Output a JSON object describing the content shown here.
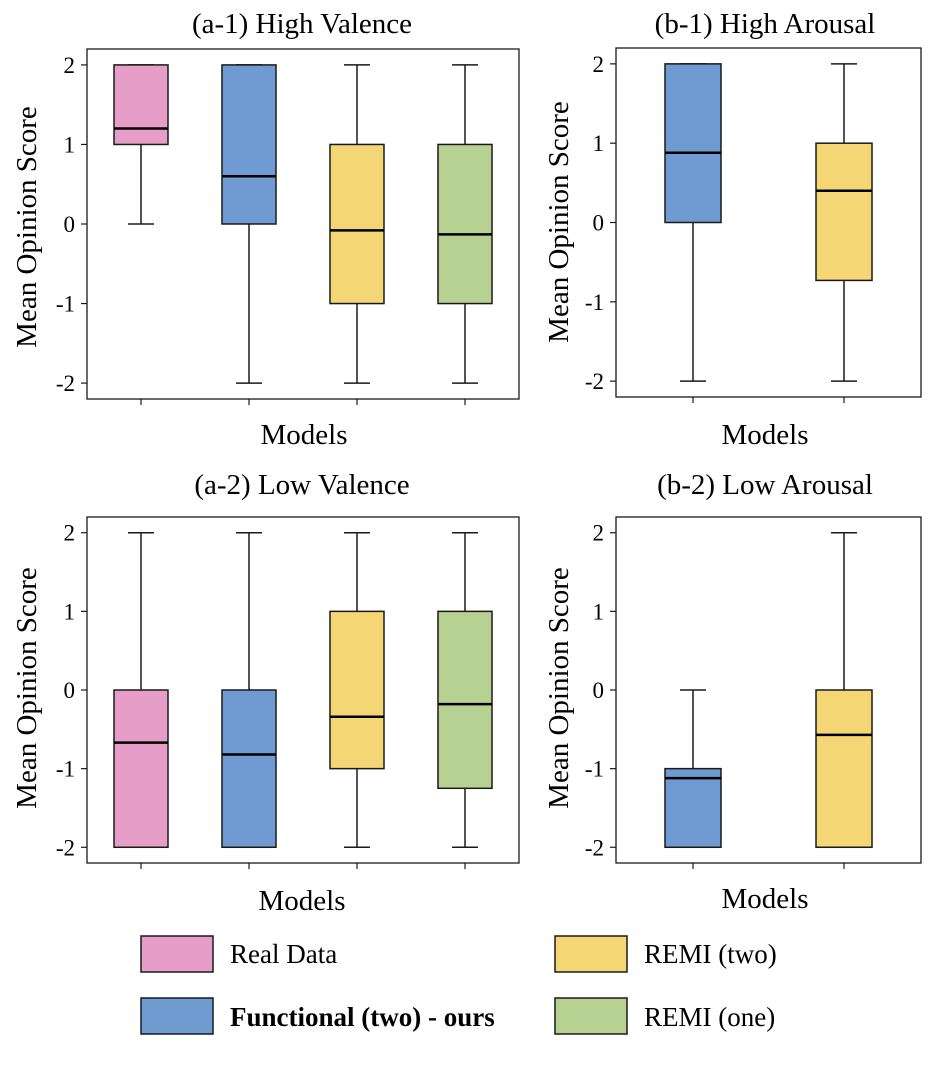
{
  "colors": {
    "real_data": "#e69dc7",
    "functional_two": "#6f9bd2",
    "remi_two": "#f4d774",
    "remi_one": "#b6d192",
    "stroke": "#1a1a1a"
  },
  "chart_data": [
    {
      "type": "box",
      "title": "(a-1) High Valence",
      "xlabel": "Models",
      "ylabel": "Mean Opinion Score",
      "ylim": [
        -2.2,
        2.2
      ],
      "yticks": [
        2,
        1,
        0,
        -1,
        -2
      ],
      "ytick_labels": [
        "2",
        "1",
        "0",
        "-1",
        "-2"
      ],
      "grid": false,
      "series": [
        {
          "name": "Real Data",
          "color_key": "real_data",
          "whisker_low": 0,
          "q1": 1,
          "median": 1.2,
          "q3": 2,
          "whisker_high": 2
        },
        {
          "name": "Functional (two) - ours",
          "color_key": "functional_two",
          "whisker_low": -2,
          "q1": 0,
          "median": 0.6,
          "q3": 2,
          "whisker_high": 2
        },
        {
          "name": "REMI (two)",
          "color_key": "remi_two",
          "whisker_low": -2,
          "q1": -1,
          "median": -0.08,
          "q3": 1,
          "whisker_high": 2
        },
        {
          "name": "REMI (one)",
          "color_key": "remi_one",
          "whisker_low": -2,
          "q1": -1,
          "median": -0.13,
          "q3": 1,
          "whisker_high": 2
        }
      ]
    },
    {
      "type": "box",
      "title": "(b-1) High Arousal",
      "xlabel": "Models",
      "ylabel": "Mean Opinion Score",
      "ylim": [
        -2.2,
        2.2
      ],
      "yticks": [
        2,
        1,
        0,
        -1,
        -2
      ],
      "ytick_labels": [
        "2",
        "1",
        "0",
        "-1",
        "-2"
      ],
      "grid": false,
      "series": [
        {
          "name": "Functional (two) - ours",
          "color_key": "functional_two",
          "whisker_low": -2,
          "q1": 0,
          "median": 0.88,
          "q3": 2,
          "whisker_high": 2
        },
        {
          "name": "REMI (two)",
          "color_key": "remi_two",
          "whisker_low": -2,
          "q1": -0.73,
          "median": 0.4,
          "q3": 1,
          "whisker_high": 2
        }
      ]
    },
    {
      "type": "box",
      "title": "(a-2) Low Valence",
      "xlabel": "Models",
      "ylabel": "Mean Opinion Score",
      "ylim": [
        -2.2,
        2.2
      ],
      "yticks": [
        2,
        1,
        0,
        -1,
        -2
      ],
      "ytick_labels": [
        "2",
        "1",
        "0",
        "-1",
        "-2"
      ],
      "grid": false,
      "series": [
        {
          "name": "Real Data",
          "color_key": "real_data",
          "whisker_low": -2,
          "q1": -2,
          "median": -0.67,
          "q3": 0,
          "whisker_high": 2
        },
        {
          "name": "Functional (two) - ours",
          "color_key": "functional_two",
          "whisker_low": -2,
          "q1": -2,
          "median": -0.82,
          "q3": 0,
          "whisker_high": 2
        },
        {
          "name": "REMI (two)",
          "color_key": "remi_two",
          "whisker_low": -2,
          "q1": -1,
          "median": -0.34,
          "q3": 1,
          "whisker_high": 2
        },
        {
          "name": "REMI (one)",
          "color_key": "remi_one",
          "whisker_low": -2,
          "q1": -1.25,
          "median": -0.18,
          "q3": 1,
          "whisker_high": 2
        }
      ]
    },
    {
      "type": "box",
      "title": "(b-2) Low Arousal",
      "xlabel": "Models",
      "ylabel": "Mean Opinion Score",
      "ylim": [
        -2.2,
        2.2
      ],
      "yticks": [
        2,
        1,
        0,
        -1,
        -2
      ],
      "ytick_labels": [
        "2",
        "1",
        "0",
        "-1",
        "-2"
      ],
      "grid": false,
      "series": [
        {
          "name": "Functional (two) - ours",
          "color_key": "functional_two",
          "whisker_low": -2,
          "q1": -2,
          "median": -1.12,
          "q3": -1,
          "whisker_high": 0
        },
        {
          "name": "REMI (two)",
          "color_key": "remi_two",
          "whisker_low": -2,
          "q1": -2,
          "median": -0.57,
          "q3": 0,
          "whisker_high": 2
        }
      ]
    }
  ],
  "legend": {
    "placement": "bottom",
    "items": [
      {
        "label": "Real Data",
        "color_key": "real_data",
        "bold": false
      },
      {
        "label": "REMI (two)",
        "color_key": "remi_two",
        "bold": false
      },
      {
        "label": "Functional (two) - ours",
        "color_key": "functional_two",
        "bold": true
      },
      {
        "label": "REMI (one)",
        "color_key": "remi_one",
        "bold": false
      }
    ]
  }
}
